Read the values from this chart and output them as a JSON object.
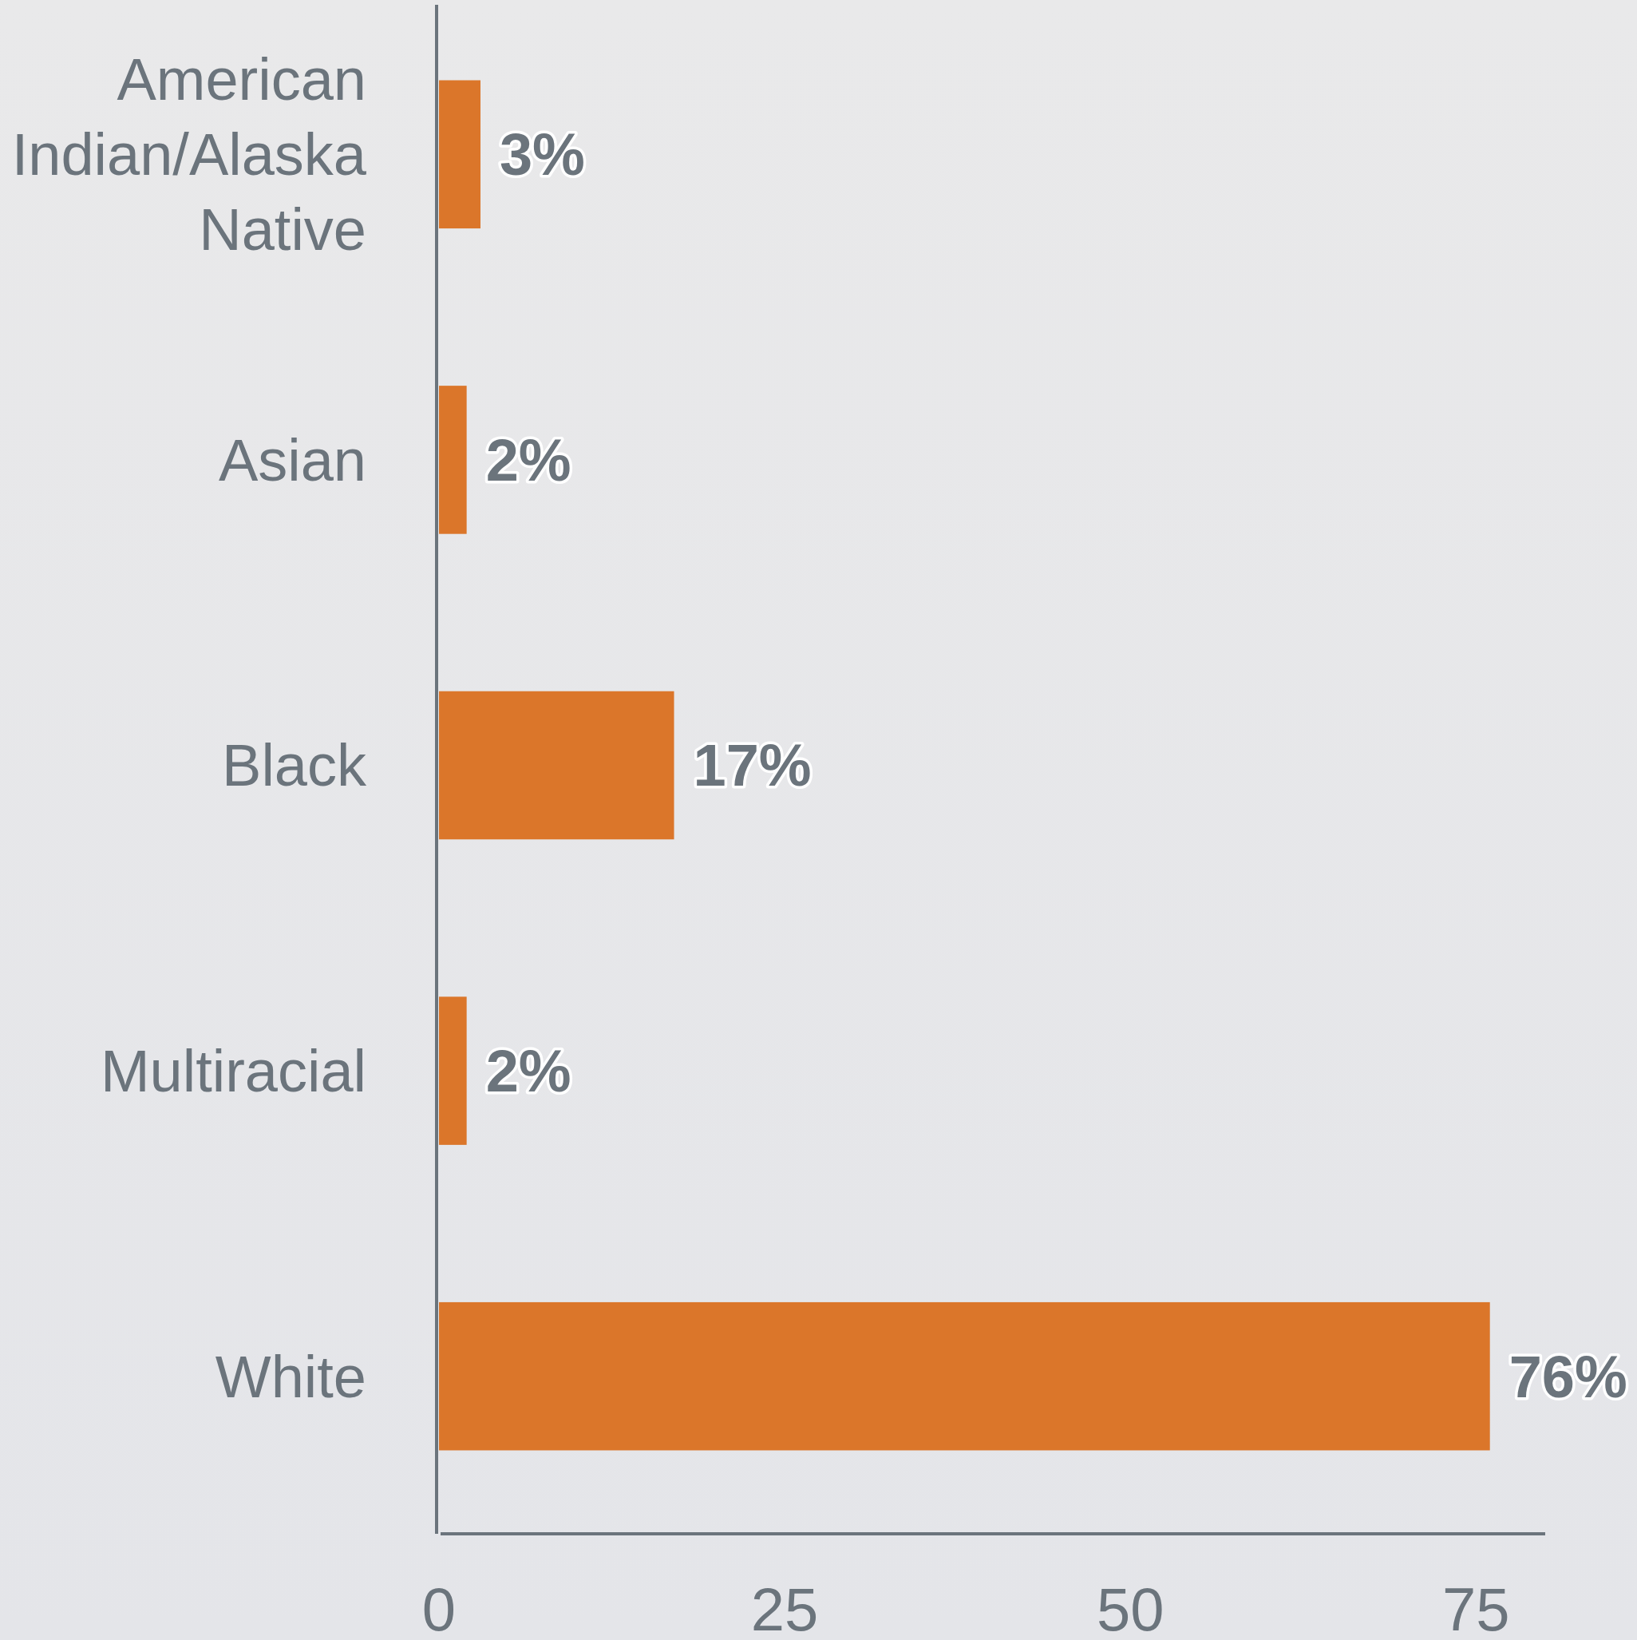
{
  "chart_data": {
    "type": "bar",
    "orientation": "horizontal",
    "categories": [
      "American Indian/Alaska Native",
      "Asian",
      "Black",
      "Multiracial",
      "White"
    ],
    "values": [
      3,
      2,
      17,
      2,
      76
    ],
    "value_labels": [
      "3%",
      "2%",
      "17%",
      "2%",
      "76%"
    ],
    "color": "#db762a",
    "xlim": [
      0,
      80
    ],
    "xticks": [
      0,
      25,
      50,
      75
    ]
  }
}
